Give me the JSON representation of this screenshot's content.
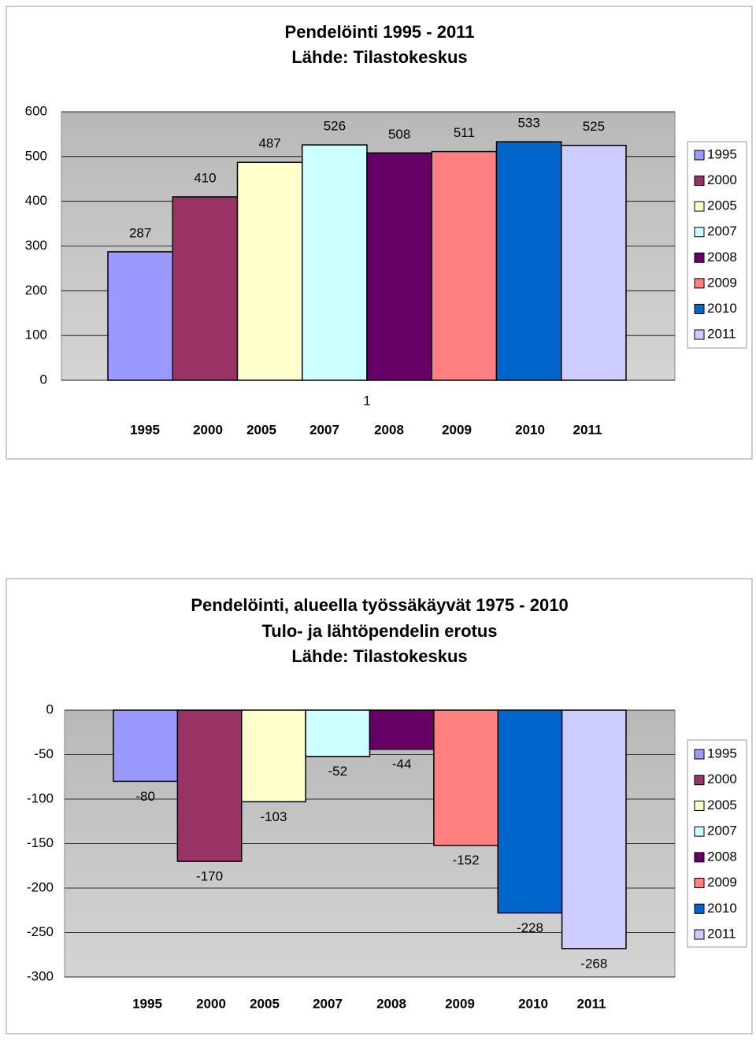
{
  "chart_data": [
    {
      "type": "bar",
      "title": "Pendelöinti 1995 - 2011",
      "subtitle": [
        "Lähde: Tilastokeskus"
      ],
      "categories": [
        "1"
      ],
      "series": [
        {
          "name": "1995",
          "color": "#9999ff",
          "values": [
            287
          ]
        },
        {
          "name": "2000",
          "color": "#993366",
          "values": [
            410
          ]
        },
        {
          "name": "2005",
          "color": "#ffffcc",
          "values": [
            487
          ]
        },
        {
          "name": "2007",
          "color": "#ccffff",
          "values": [
            526
          ]
        },
        {
          "name": "2008",
          "color": "#660066",
          "values": [
            508
          ]
        },
        {
          "name": "2009",
          "color": "#ff8080",
          "values": [
            511
          ]
        },
        {
          "name": "2010",
          "color": "#0066cc",
          "values": [
            533
          ]
        },
        {
          "name": "2011",
          "color": "#ccccff",
          "values": [
            525
          ]
        }
      ],
      "ylim": [
        0,
        600
      ],
      "yticks": [
        0,
        100,
        200,
        300,
        400,
        500,
        600
      ],
      "grid": true,
      "legend": "right"
    },
    {
      "type": "bar",
      "title": "Pendelöinti, alueella työssäkäyvät 1975 - 2010",
      "subtitle": [
        "Tulo- ja lähtöpendelin erotus",
        "Lähde: Tilastokeskus"
      ],
      "categories": [
        null
      ],
      "series": [
        {
          "name": "1995",
          "color": "#9999ff",
          "values": [
            -80
          ]
        },
        {
          "name": "2000",
          "color": "#993366",
          "values": [
            -170
          ]
        },
        {
          "name": "2005",
          "color": "#ffffcc",
          "values": [
            -103
          ]
        },
        {
          "name": "2007",
          "color": "#ccffff",
          "values": [
            -52
          ]
        },
        {
          "name": "2008",
          "color": "#660066",
          "values": [
            -44
          ]
        },
        {
          "name": "2009",
          "color": "#ff8080",
          "values": [
            -152
          ]
        },
        {
          "name": "2010",
          "color": "#0066cc",
          "values": [
            -228
          ]
        },
        {
          "name": "2011",
          "color": "#ccccff",
          "values": [
            -268
          ]
        }
      ],
      "ylim": [
        -300,
        0
      ],
      "yticks": [
        -300,
        -250,
        -200,
        -150,
        -100,
        -50,
        0
      ],
      "grid": true,
      "legend": "right"
    }
  ]
}
